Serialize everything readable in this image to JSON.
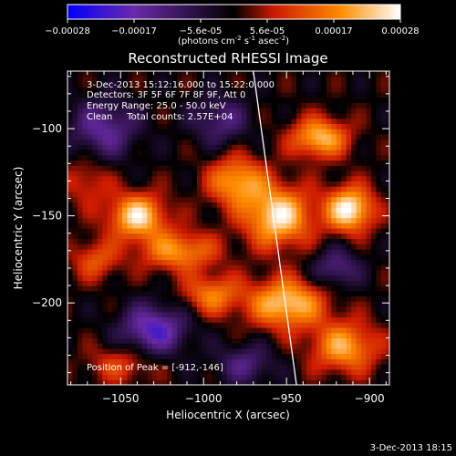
{
  "colorbar": {
    "ticks": [
      "-0.00028",
      "-0.00017",
      "-5.6e-05",
      "5.6e-05",
      "0.00017",
      "0.00028"
    ],
    "units": "(photons cm",
    "units_exp1": "-2",
    "units_mid": " s",
    "units_exp2": "-1",
    "units_end": " asec",
    "units_exp3": "-2",
    "units_close": ")"
  },
  "annotations": {
    "line1": "3-Dec-2013 15:12:16.000 to 15:22:0.000",
    "line2": "Detectors: 3F 5F 6F 7F 8F 9F, Att 0",
    "line3": "Energy Range: 25.0 - 50.0 keV",
    "line4": "Clean     Total counts: 2.57E+04",
    "peak": "Position of Peak = [-912,-146]"
  },
  "footer": {
    "timestamp": "3-Dec-2013 18:15"
  },
  "chart_data": {
    "type": "heatmap",
    "title": "Reconstructed RHESSI Image",
    "xlabel": "Heliocentric X (arcsec)",
    "ylabel": "Heliocentric Y (arcsec)",
    "x_ticks": [
      -1050,
      -1000,
      -950,
      -900
    ],
    "y_ticks": [
      -100,
      -150,
      -200
    ],
    "x_tick_labels": [
      "−1050",
      "−1000",
      "−950",
      "−900"
    ],
    "y_tick_labels": [
      "−100",
      "−150",
      "−200"
    ],
    "xlim": [
      -1082,
      -888
    ],
    "ylim": [
      -247,
      -67
    ],
    "zlim": [
      -0.00028,
      0.00028
    ],
    "grid": false,
    "colormap": [
      "#0000ff",
      "#6a2aa8",
      "#000000",
      "#cc1a00",
      "#ff8c00",
      "#ffffff"
    ],
    "peak": [
      -912,
      -146
    ],
    "blobs": [
      {
        "x": -1040,
        "y": -150,
        "amp": 0.00025,
        "sx": 12,
        "sy": 9
      },
      {
        "x": -1015,
        "y": -170,
        "amp": 0.00018,
        "sx": 16,
        "sy": 8
      },
      {
        "x": -980,
        "y": -130,
        "amp": 0.0002,
        "sx": 12,
        "sy": 10
      },
      {
        "x": -955,
        "y": -150,
        "amp": 0.00026,
        "sx": 14,
        "sy": 12
      },
      {
        "x": -930,
        "y": -105,
        "amp": 0.00022,
        "sx": 12,
        "sy": 8
      },
      {
        "x": -912,
        "y": -146,
        "amp": 0.00028,
        "sx": 10,
        "sy": 9
      },
      {
        "x": -950,
        "y": -200,
        "amp": 0.00024,
        "sx": 16,
        "sy": 10
      },
      {
        "x": -915,
        "y": -225,
        "amp": 0.0002,
        "sx": 14,
        "sy": 10
      },
      {
        "x": -995,
        "y": -195,
        "amp": 0.00016,
        "sx": 12,
        "sy": 8
      },
      {
        "x": -1065,
        "y": -175,
        "amp": 0.00012,
        "sx": 10,
        "sy": 8
      },
      {
        "x": -1050,
        "y": -235,
        "amp": 0.0001,
        "sx": 14,
        "sy": 8
      },
      {
        "x": -1070,
        "y": -130,
        "amp": 9e-05,
        "sx": 10,
        "sy": 10
      },
      {
        "x": -1060,
        "y": -100,
        "amp": -0.00015,
        "sx": 14,
        "sy": 12
      },
      {
        "x": -990,
        "y": -95,
        "amp": -0.00012,
        "sx": 12,
        "sy": 10
      },
      {
        "x": -1030,
        "y": -215,
        "amp": -0.0002,
        "sx": 14,
        "sy": 10
      },
      {
        "x": -920,
        "y": -180,
        "amp": -0.00013,
        "sx": 10,
        "sy": 8
      },
      {
        "x": -975,
        "y": -235,
        "amp": -0.00012,
        "sx": 12,
        "sy": 8
      }
    ],
    "limb_line": [
      [
        -970,
        -67
      ],
      [
        -944,
        -247
      ]
    ]
  }
}
